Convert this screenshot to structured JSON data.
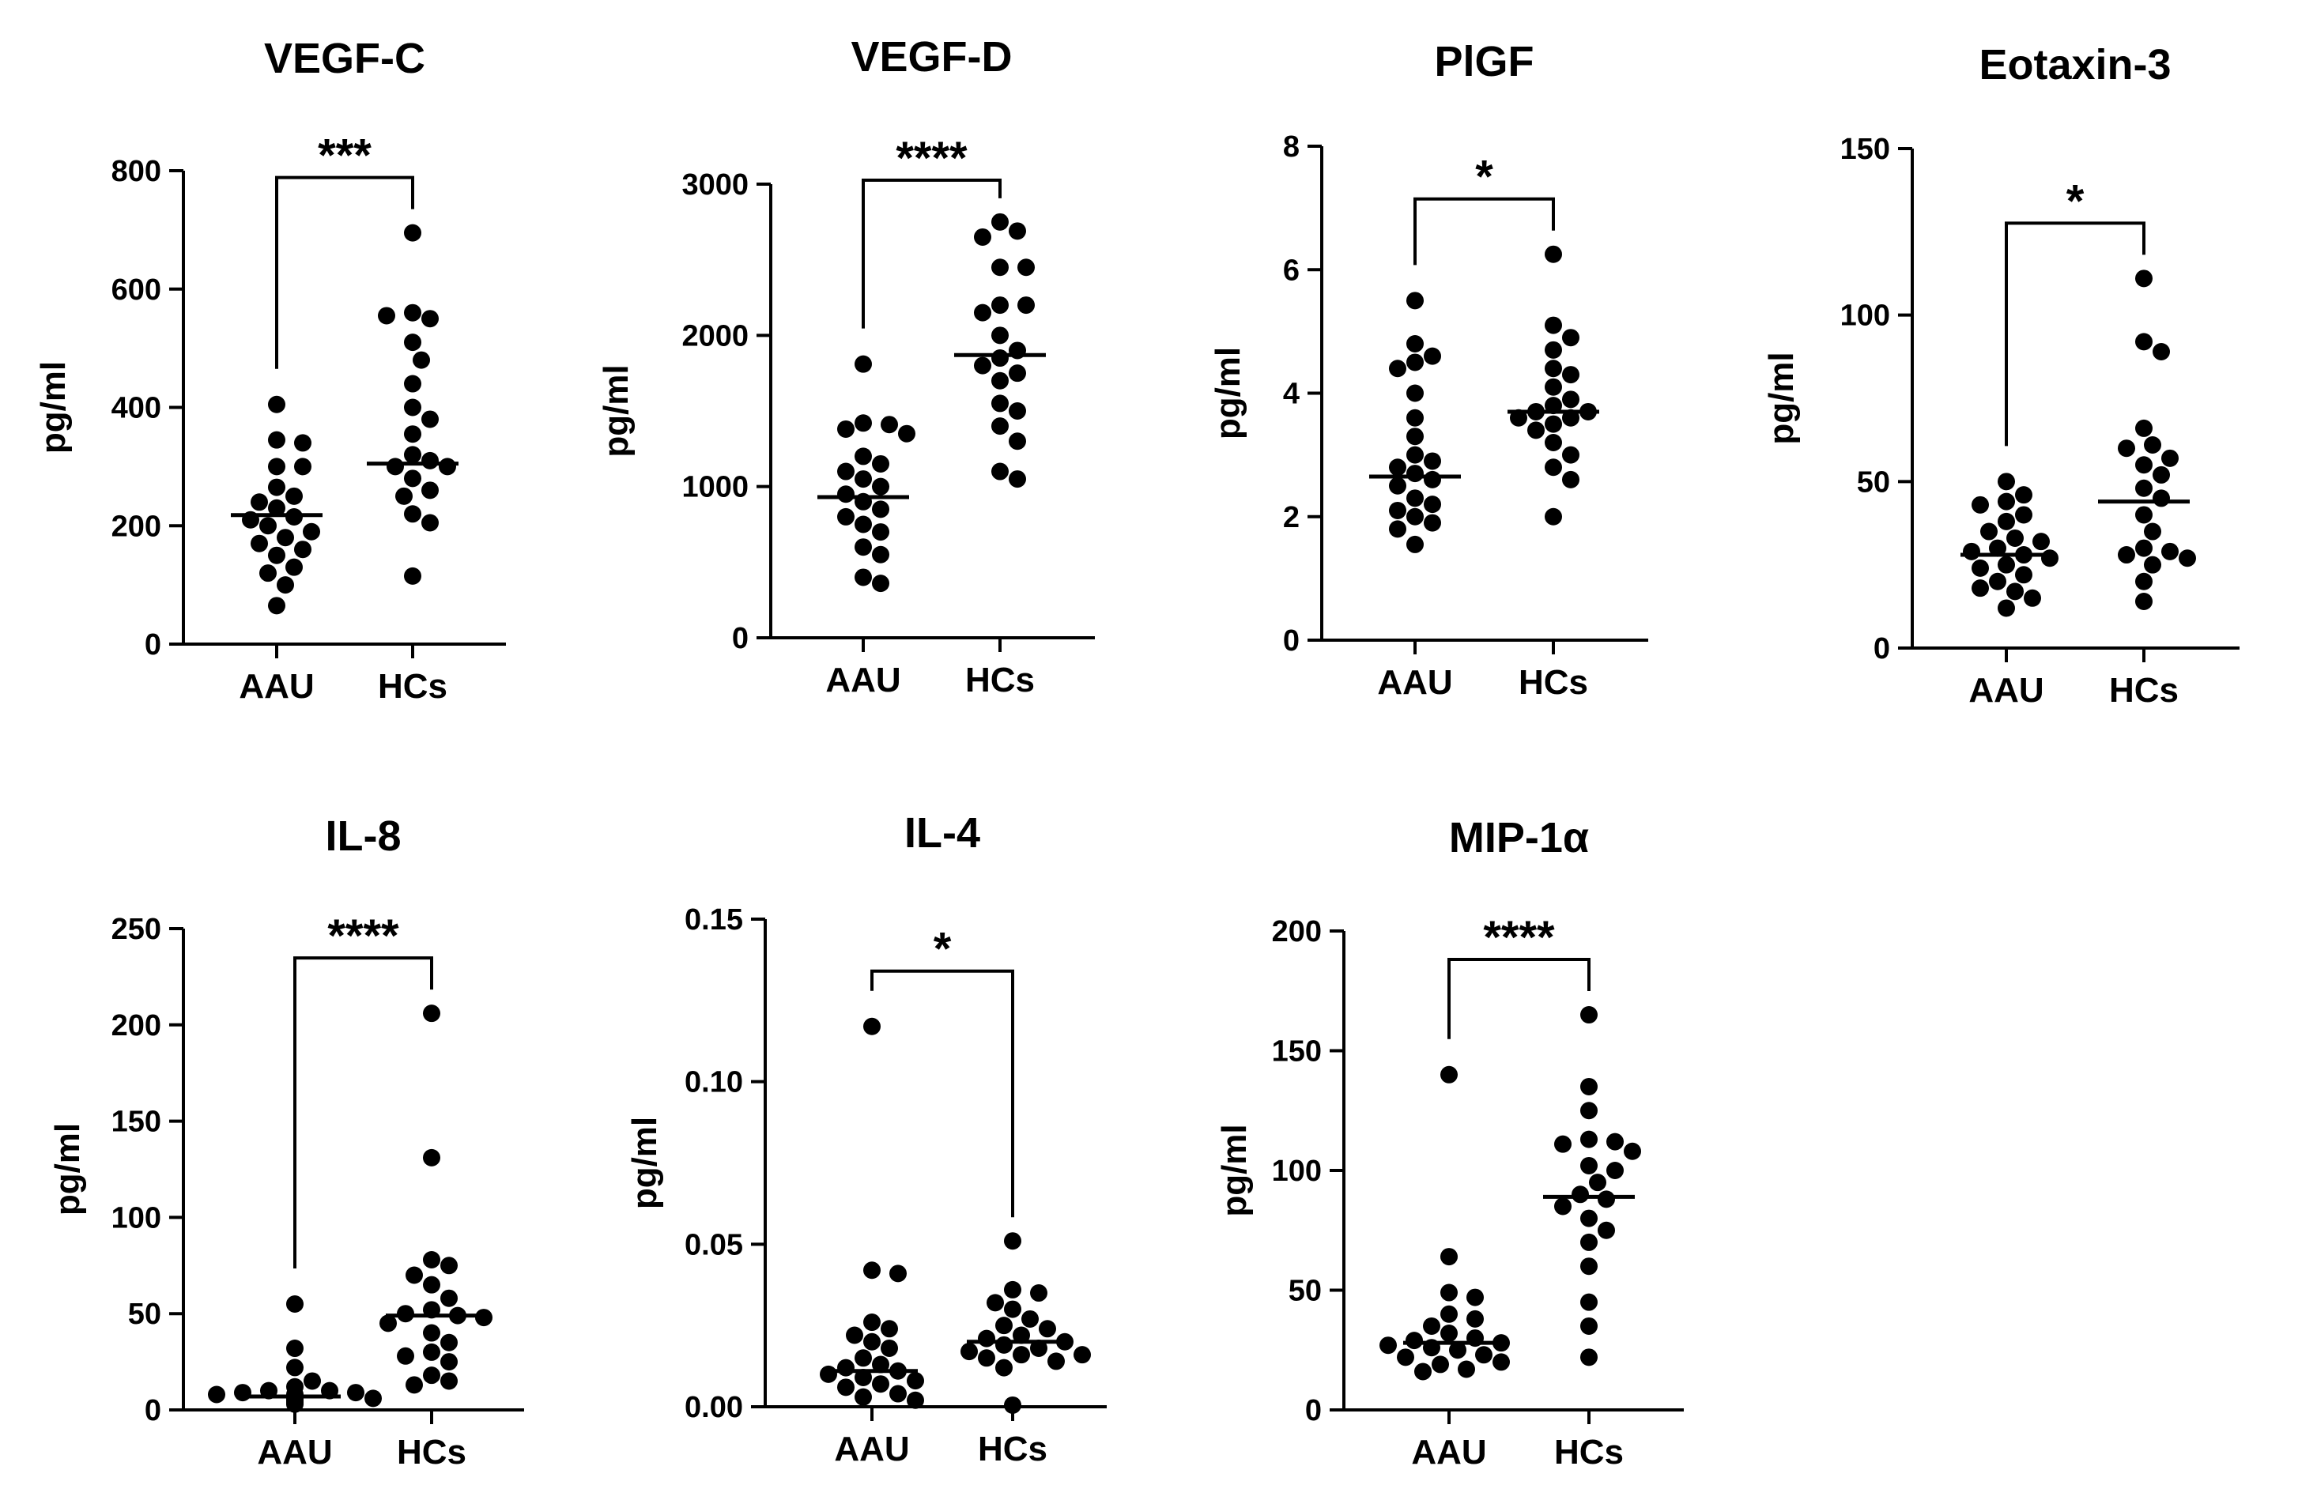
{
  "chart_data": [
    {
      "type": "scatter",
      "title": "VEGF-C",
      "ylabel": "pg/ml",
      "categories": [
        "AAU",
        "HCs"
      ],
      "ylim": [
        0,
        800
      ],
      "yticks": [
        0,
        200,
        400,
        600,
        800
      ],
      "ytick_labels": [
        "0",
        "200",
        "400",
        "600",
        "800"
      ],
      "significance": "***",
      "series": [
        {
          "name": "AAU",
          "median": 218,
          "values": [
            405,
            345,
            340,
            300,
            300,
            265,
            250,
            240,
            230,
            215,
            210,
            200,
            190,
            180,
            170,
            160,
            150,
            130,
            120,
            100,
            65
          ]
        },
        {
          "name": "HCs",
          "median": 305,
          "values": [
            695,
            560,
            550,
            555,
            510,
            480,
            440,
            400,
            380,
            355,
            320,
            310,
            300,
            300,
            280,
            260,
            250,
            220,
            205,
            115
          ]
        }
      ]
    },
    {
      "type": "scatter",
      "title": "VEGF-D",
      "ylabel": "pg/ml",
      "categories": [
        "AAU",
        "HCs"
      ],
      "ylim": [
        0,
        3000
      ],
      "yticks": [
        0,
        1000,
        2000,
        3000
      ],
      "ytick_labels": [
        "0",
        "1000",
        "2000",
        "3000"
      ],
      "significance": "****",
      "series": [
        {
          "name": "AAU",
          "median": 930,
          "values": [
            1810,
            1420,
            1410,
            1380,
            1350,
            1200,
            1150,
            1100,
            1050,
            1000,
            950,
            900,
            850,
            800,
            750,
            700,
            600,
            550,
            400,
            360
          ]
        },
        {
          "name": "HCs",
          "median": 1870,
          "values": [
            2750,
            2690,
            2650,
            2450,
            2450,
            2200,
            2200,
            2150,
            2000,
            1900,
            1850,
            1800,
            1750,
            1700,
            1550,
            1500,
            1400,
            1300,
            1100,
            1050
          ]
        }
      ]
    },
    {
      "type": "scatter",
      "title": "PlGF",
      "ylabel": "pg/ml",
      "categories": [
        "AAU",
        "HCs"
      ],
      "ylim": [
        0,
        8
      ],
      "yticks": [
        0,
        2,
        4,
        6,
        8
      ],
      "ytick_labels": [
        "0",
        "2",
        "4",
        "6",
        "8"
      ],
      "significance": "*",
      "series": [
        {
          "name": "AAU",
          "median": 2.65,
          "values": [
            5.5,
            4.8,
            4.6,
            4.5,
            4.4,
            4.0,
            3.6,
            3.3,
            3.0,
            2.9,
            2.8,
            2.7,
            2.6,
            2.5,
            2.3,
            2.2,
            2.1,
            2.0,
            1.9,
            1.8,
            1.55
          ]
        },
        {
          "name": "HCs",
          "median": 3.7,
          "values": [
            6.25,
            5.1,
            4.9,
            4.7,
            4.4,
            4.3,
            4.1,
            3.9,
            3.8,
            3.7,
            3.7,
            3.6,
            3.6,
            3.5,
            3.4,
            3.2,
            3.0,
            2.8,
            2.6,
            2.0
          ]
        }
      ]
    },
    {
      "type": "scatter",
      "title": "Eotaxin-3",
      "ylabel": "pg/ml",
      "categories": [
        "AAU",
        "HCs"
      ],
      "ylim": [
        0,
        150
      ],
      "yticks": [
        0,
        50,
        100,
        150
      ],
      "ytick_labels": [
        "0",
        "50",
        "100",
        "150"
      ],
      "significance": "*",
      "series": [
        {
          "name": "AAU",
          "median": 28,
          "values": [
            50,
            46,
            44,
            43,
            40,
            38,
            35,
            33,
            32,
            30,
            29,
            28,
            27,
            25,
            24,
            22,
            20,
            18,
            17,
            15,
            12
          ]
        },
        {
          "name": "HCs",
          "median": 44,
          "values": [
            111,
            92,
            89,
            66,
            61,
            60,
            57,
            55,
            52,
            48,
            45,
            40,
            35,
            30,
            29,
            28,
            27,
            25,
            20,
            14
          ]
        }
      ]
    },
    {
      "type": "scatter",
      "title": "IL-8",
      "ylabel": "pg/ml",
      "categories": [
        "AAU",
        "HCs"
      ],
      "ylim": [
        0,
        250
      ],
      "yticks": [
        0,
        50,
        100,
        150,
        200,
        250
      ],
      "ytick_labels": [
        "0",
        "50",
        "100",
        "150",
        "200",
        "250"
      ],
      "significance": "****",
      "series": [
        {
          "name": "AAU",
          "median": 7,
          "values": [
            55,
            32,
            22,
            15,
            12,
            10,
            10,
            9,
            9,
            8,
            8,
            7,
            7,
            6,
            6,
            5,
            5,
            4,
            4,
            3
          ]
        },
        {
          "name": "HCs",
          "median": 49,
          "values": [
            206,
            131,
            78,
            75,
            70,
            65,
            58,
            52,
            50,
            49,
            48,
            45,
            40,
            35,
            30,
            28,
            25,
            18,
            15,
            13
          ]
        }
      ]
    },
    {
      "type": "scatter",
      "title": "IL-4",
      "ylabel": "pg/ml",
      "categories": [
        "AAU",
        "HCs"
      ],
      "ylim": [
        0,
        0.15
      ],
      "yticks": [
        0,
        0.05,
        0.1,
        0.15
      ],
      "ytick_labels": [
        "0.00",
        "0.05",
        "0.10",
        "0.15"
      ],
      "significance": "*",
      "series": [
        {
          "name": "AAU",
          "median": 0.011,
          "values": [
            0.117,
            0.042,
            0.041,
            0.026,
            0.024,
            0.022,
            0.02,
            0.018,
            0.015,
            0.013,
            0.012,
            0.011,
            0.01,
            0.009,
            0.008,
            0.007,
            0.006,
            0.004,
            0.003,
            0.002
          ]
        },
        {
          "name": "HCs",
          "median": 0.02,
          "values": [
            0.051,
            0.036,
            0.035,
            0.032,
            0.03,
            0.027,
            0.025,
            0.024,
            0.022,
            0.021,
            0.02,
            0.019,
            0.018,
            0.017,
            0.016,
            0.016,
            0.015,
            0.014,
            0.012,
            0.0005
          ]
        }
      ]
    },
    {
      "type": "scatter",
      "title": "MIP-1α",
      "ylabel": "pg/ml",
      "categories": [
        "AAU",
        "HCs"
      ],
      "ylim": [
        0,
        200
      ],
      "yticks": [
        0,
        50,
        100,
        150,
        200
      ],
      "ytick_labels": [
        "0",
        "50",
        "100",
        "150",
        "200"
      ],
      "significance": "****",
      "series": [
        {
          "name": "AAU",
          "median": 28,
          "values": [
            140,
            64,
            49,
            47,
            40,
            38,
            35,
            32,
            30,
            29,
            28,
            27,
            26,
            25,
            23,
            22,
            20,
            19,
            17,
            16
          ]
        },
        {
          "name": "HCs",
          "median": 89,
          "values": [
            165,
            135,
            125,
            113,
            112,
            111,
            108,
            102,
            100,
            95,
            90,
            88,
            85,
            80,
            75,
            70,
            60,
            45,
            35,
            22
          ]
        }
      ]
    }
  ]
}
